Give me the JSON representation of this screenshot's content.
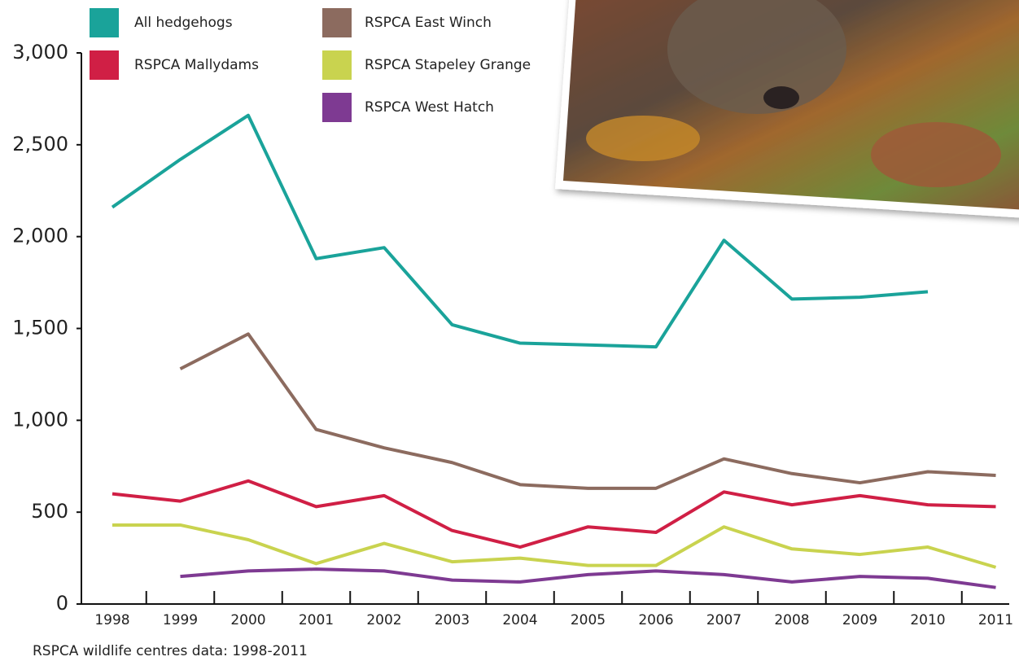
{
  "chart_data": {
    "type": "line",
    "note": "RSPCA wildlife centres data: 1998-2011",
    "categories": [
      "1998",
      "1999",
      "2000",
      "2001",
      "2002",
      "2003",
      "2004",
      "2005",
      "2006",
      "2007",
      "2008",
      "2009",
      "2010",
      "2011"
    ],
    "ylim": [
      0,
      3000
    ],
    "yticks": [
      0,
      500,
      {
        "value": 1000,
        "label": "1,000"
      },
      {
        "value": 1500,
        "label": "1,500"
      },
      {
        "value": 2000,
        "label": "2,000"
      },
      {
        "value": 2500,
        "label": "2,500"
      },
      {
        "value": 3000,
        "label": "3,000"
      }
    ],
    "series": [
      {
        "name": "All hedgehogs",
        "color": "#1aa39a",
        "values": [
          2160,
          2420,
          2660,
          1880,
          1940,
          1520,
          1420,
          1410,
          1400,
          1980,
          1660,
          1670,
          1700,
          null
        ]
      },
      {
        "name": "RSPCA East Winch",
        "color": "#8c6b5f",
        "values": [
          null,
          1280,
          1470,
          950,
          850,
          770,
          650,
          630,
          630,
          790,
          710,
          660,
          720,
          700
        ]
      },
      {
        "name": "RSPCA Mallydams",
        "color": "#d01f45",
        "values": [
          600,
          560,
          670,
          530,
          590,
          400,
          310,
          420,
          390,
          610,
          540,
          590,
          540,
          530
        ]
      },
      {
        "name": "RSPCA Stapeley Grange",
        "color": "#c9d34f",
        "values": [
          430,
          430,
          350,
          220,
          330,
          230,
          250,
          210,
          210,
          420,
          300,
          270,
          310,
          200
        ]
      },
      {
        "name": "RSPCA West Hatch",
        "color": "#7e3a92",
        "values": [
          null,
          150,
          180,
          190,
          180,
          130,
          120,
          160,
          180,
          160,
          120,
          150,
          140,
          90
        ]
      }
    ]
  }
}
